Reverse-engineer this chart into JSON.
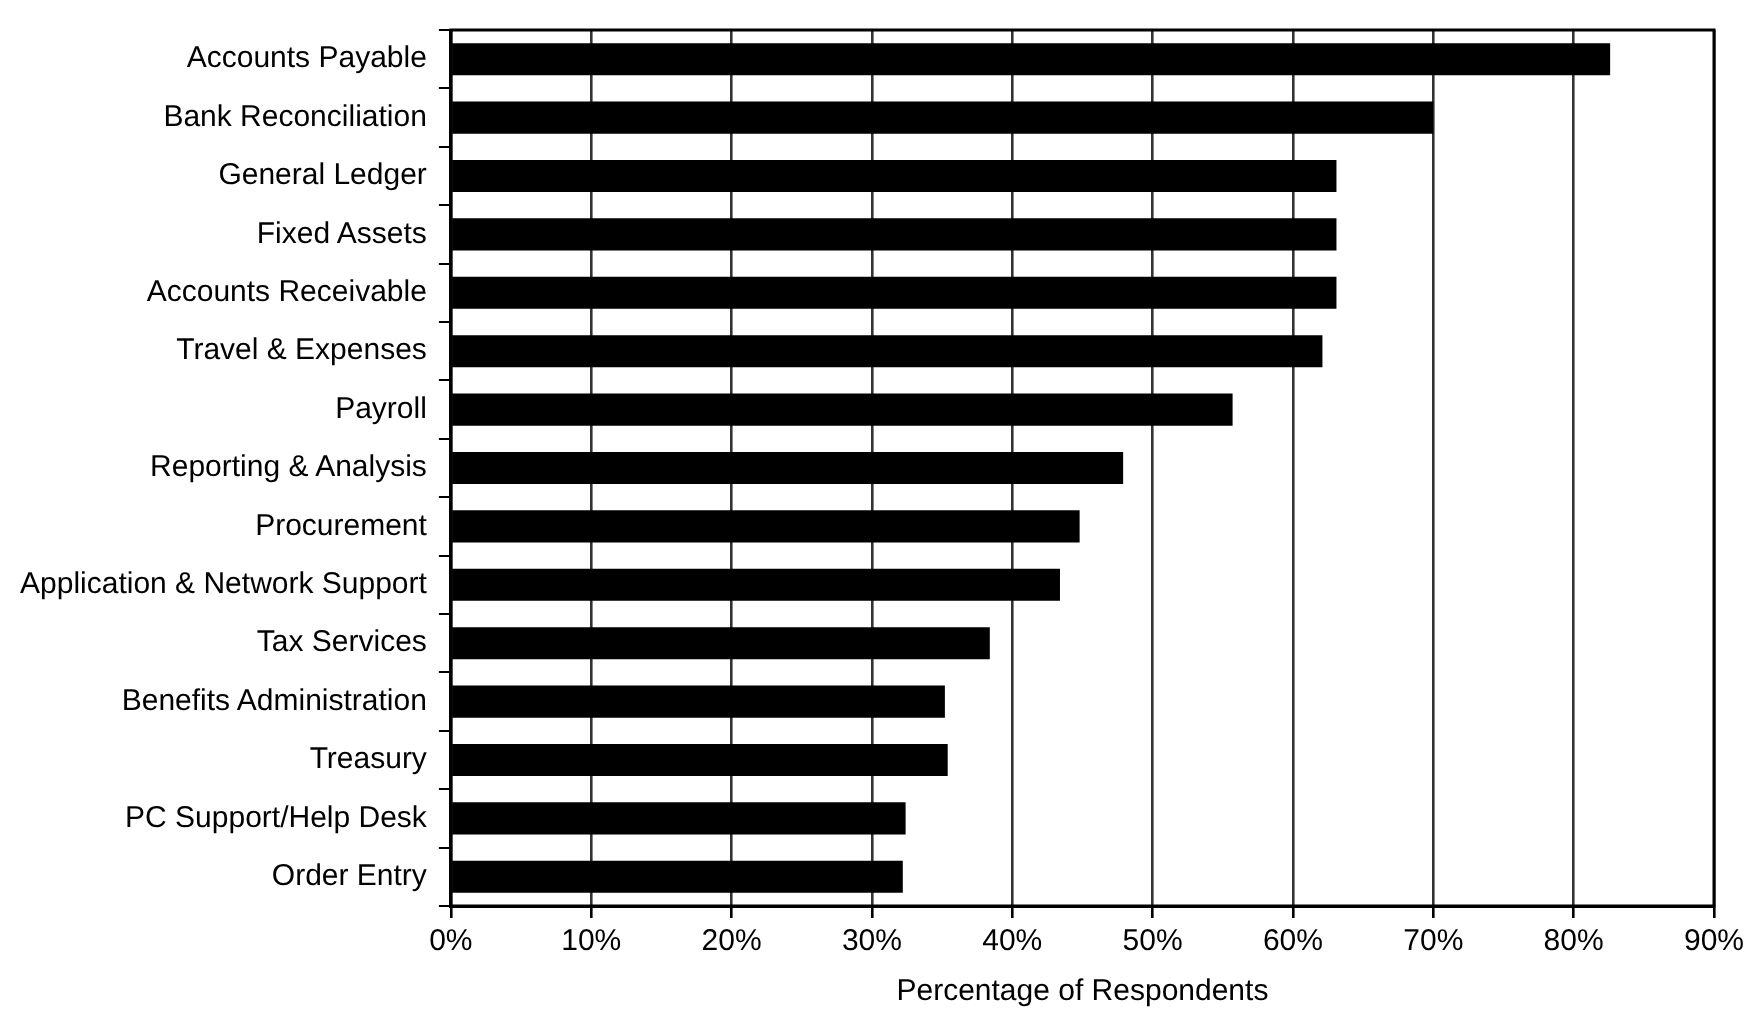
{
  "chart_data": {
    "type": "bar",
    "orientation": "horizontal",
    "xlabel": "Percentage of Respondents",
    "categories": [
      "Accounts Payable",
      "Bank Reconciliation",
      "General Ledger",
      "Fixed Assets",
      "Accounts Receivable",
      "Travel & Expenses",
      "Payroll",
      "Reporting & Analysis",
      "Procurement",
      "Application & Network Support",
      "Tax Services",
      "Benefits Administration",
      "Treasury",
      "PC Support/Help Desk",
      "Order Entry"
    ],
    "values": [
      82.6,
      70.0,
      63.1,
      63.1,
      63.1,
      62.1,
      55.7,
      47.9,
      44.8,
      43.4,
      38.4,
      35.2,
      35.4,
      32.4,
      32.2
    ],
    "color": "#000000",
    "xlim": [
      0,
      90
    ],
    "xticks": [
      {
        "value": 0,
        "label": "0%"
      },
      {
        "value": 10,
        "label": "10%"
      },
      {
        "value": 20,
        "label": "20%"
      },
      {
        "value": 30,
        "label": "30%"
      },
      {
        "value": 40,
        "label": "40%"
      },
      {
        "value": 50,
        "label": "50%"
      },
      {
        "value": 60,
        "label": "60%"
      },
      {
        "value": 70,
        "label": "70%"
      },
      {
        "value": 80,
        "label": "80%"
      },
      {
        "value": 90,
        "label": "90%"
      }
    ],
    "grid": "x",
    "legend": false
  }
}
